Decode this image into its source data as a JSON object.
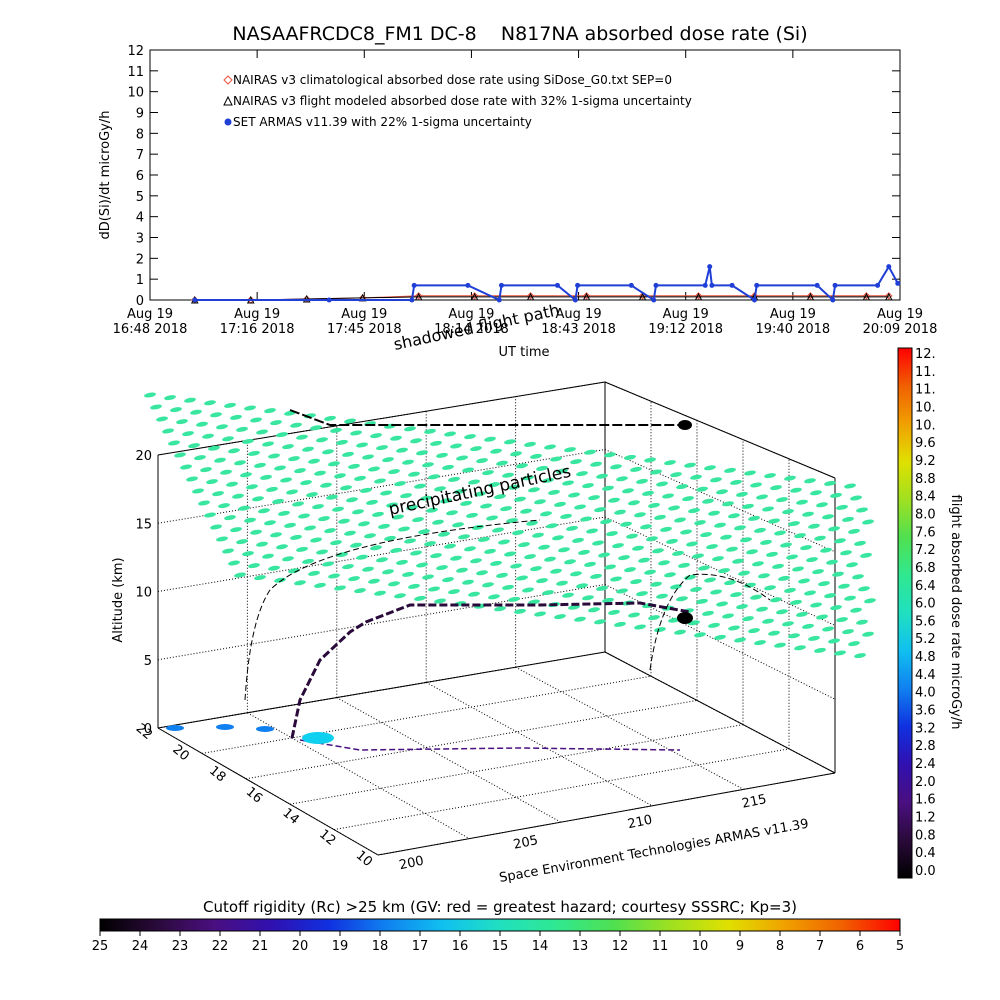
{
  "title": "NASAAFRCDC8_FM1 DC-8    N817NA absorbed dose rate (Si)",
  "chart_data": [
    {
      "type": "line",
      "title": "NASAAFRCDC8_FM1 DC-8    N817NA absorbed dose rate (Si)",
      "ylabel": "dD(Si)/dt microGy/h",
      "xlabel": "UT time",
      "ylim": [
        0,
        12
      ],
      "yticks": [
        "0",
        "1",
        "2",
        "3",
        "4",
        "5",
        "6",
        "7",
        "8",
        "9",
        "10",
        "11",
        "12"
      ],
      "xticks": [
        {
          "top": "Aug 19",
          "bottom": "16:48 2018"
        },
        {
          "top": "Aug 19",
          "bottom": "17:16 2018"
        },
        {
          "top": "Aug 19",
          "bottom": "17:45 2018"
        },
        {
          "top": "Aug 19",
          "bottom": "18:14 2018"
        },
        {
          "top": "Aug 19",
          "bottom": "18:43 2018"
        },
        {
          "top": "Aug 19",
          "bottom": "19:12 2018"
        },
        {
          "top": "Aug 19",
          "bottom": "19:40 2018"
        },
        {
          "top": "Aug 19",
          "bottom": "20:09 2018"
        }
      ],
      "legend_position": "top-left",
      "series": [
        {
          "name": "NAIRAS v3 climatological absorbed dose rate using SiDose_G0.txt SEP=0",
          "color": "#e8503a",
          "marker": "diamond",
          "x": [
            17.0,
            17.25,
            17.5,
            17.75,
            18.0,
            18.25,
            18.5,
            18.75,
            19.0,
            19.25,
            19.5,
            19.75,
            20.0,
            20.1
          ],
          "y": [
            0.0,
            0.0,
            0.05,
            0.1,
            0.2,
            0.2,
            0.2,
            0.2,
            0.2,
            0.2,
            0.2,
            0.2,
            0.2,
            0.2
          ]
        },
        {
          "name": "NAIRAS v3 flight modeled absorbed dose rate with 32% 1-sigma uncertainty",
          "color": "#000000",
          "marker": "triangle",
          "x": [
            17.0,
            17.25,
            17.5,
            17.75,
            18.0,
            18.25,
            18.5,
            18.75,
            19.0,
            19.25,
            19.5,
            19.75,
            20.0,
            20.1
          ],
          "y": [
            0.0,
            0.0,
            0.05,
            0.1,
            0.15,
            0.15,
            0.15,
            0.15,
            0.15,
            0.15,
            0.15,
            0.15,
            0.15,
            0.15
          ]
        },
        {
          "name": "SET ARMAS v11.39 with 22% 1-sigma uncertainty",
          "color": "#1f3fd6",
          "marker": "circle",
          "x": [
            17.0,
            17.6,
            17.97,
            17.98,
            18.22,
            18.36,
            18.37,
            18.62,
            18.7,
            18.71,
            18.95,
            19.05,
            19.06,
            19.28,
            19.3,
            19.31,
            19.4,
            19.5,
            19.51,
            19.78,
            19.85,
            19.86,
            20.05,
            20.1,
            20.14
          ],
          "y": [
            0.0,
            0.0,
            0.0,
            0.7,
            0.7,
            0.0,
            0.7,
            0.7,
            0.0,
            0.7,
            0.7,
            0.0,
            0.7,
            0.7,
            1.6,
            0.7,
            0.7,
            0.0,
            0.7,
            0.7,
            0.0,
            0.7,
            0.7,
            1.6,
            0.8
          ]
        }
      ]
    },
    {
      "type": "scatter",
      "subtype": "3d-flight-track",
      "zlabel": "Altitude (km)",
      "zticks": [
        "0",
        "5",
        "10",
        "15",
        "20"
      ],
      "lat_ticks": [
        "22",
        "20",
        "18",
        "16",
        "14",
        "12",
        "10"
      ],
      "lon_ticks": [
        "200",
        "205",
        "210",
        "215"
      ],
      "annotations": [
        "precipitating particles",
        "shadowed flight path"
      ],
      "track": [
        {
          "lon": 196.5,
          "lat": 21.3,
          "alt": 0.0
        },
        {
          "lon": 198.0,
          "lat": 20.0,
          "alt": 3.0
        },
        {
          "lon": 199.5,
          "lat": 18.5,
          "alt": 7.0
        },
        {
          "lon": 201.0,
          "lat": 17.5,
          "alt": 8.0
        },
        {
          "lon": 206.0,
          "lat": 17.5,
          "alt": 8.0
        },
        {
          "lon": 211.0,
          "lat": 17.5,
          "alt": 8.0
        },
        {
          "lon": 212.0,
          "lat": 17.3,
          "alt": 7.5
        }
      ],
      "credit": "Space Environment Technologies ARMAS v11.39"
    }
  ],
  "colorbar_right": {
    "label": "flight absorbed dose rate microGy/h",
    "ticks": [
      "12.",
      "11.",
      "11.",
      "10.",
      "10.",
      "9.6",
      "9.2",
      "8.8",
      "8.4",
      "8.0",
      "7.6",
      "7.2",
      "6.8",
      "6.4",
      "6.0",
      "5.6",
      "5.2",
      "4.8",
      "4.4",
      "4.0",
      "3.6",
      "3.2",
      "2.8",
      "2.4",
      "2.0",
      "1.6",
      "1.2",
      "0.8",
      "0.4",
      "0.0"
    ]
  },
  "colorbar_bottom": {
    "label": "Cutoff rigidity (Rc) >25 km (GV: red = greatest hazard; courtesy SSSRC; Kp=3)",
    "ticks": [
      "25",
      "24",
      "23",
      "22",
      "21",
      "20",
      "19",
      "18",
      "17",
      "16",
      "15",
      "14",
      "13",
      "12",
      "11",
      "10",
      "9",
      "8",
      "7",
      "6",
      "5"
    ]
  },
  "colors": {
    "palette": [
      "#000000",
      "#2a0a3a",
      "#4a0f80",
      "#3010b0",
      "#1030e0",
      "#1080f0",
      "#10c0f0",
      "#20e0c0",
      "#30e890",
      "#50e050",
      "#a0e020",
      "#e0e000",
      "#f0a000",
      "#f06000",
      "#ff0000"
    ]
  }
}
